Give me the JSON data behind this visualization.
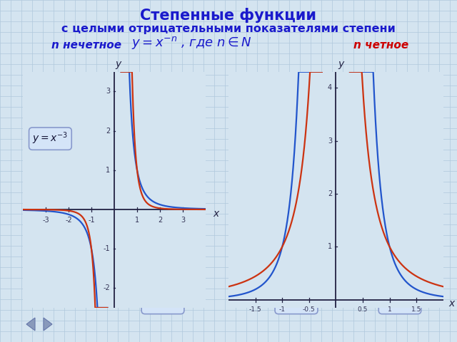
{
  "title_line1": "Степенные функции",
  "title_line2": "с целыми отрицательными показателями степени",
  "title_color": "#1a1acc",
  "bg_color": "#d4e4f0",
  "grid_color": "#b0c8dc",
  "formula_text": "y = x^{-n} , где n \\in N",
  "label_odd": "n нечетное",
  "label_even": "n четное",
  "label_color_odd": "#cc0000",
  "label_color_even": "#cc0000",
  "label_color_odd_text": "#1a1acc",
  "color_blue": "#2255cc",
  "color_red": "#cc3311",
  "box_facecolor": "#d4e4f8",
  "box_edgecolor": "#8899cc",
  "axis_color": "#222244",
  "tick_color": "#333355"
}
